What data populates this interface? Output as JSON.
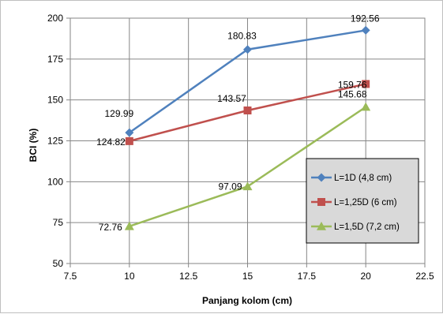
{
  "chart_data": {
    "type": "line",
    "title": "",
    "xlabel": "Panjang kolom (cm)",
    "ylabel": "BCI (%)",
    "xlim": [
      7.5,
      22.5
    ],
    "ylim": [
      50,
      200
    ],
    "xticks": [
      "7.5",
      "10",
      "12.5",
      "15",
      "17.5",
      "20",
      "22.5"
    ],
    "yticks": [
      "50",
      "75",
      "100",
      "125",
      "150",
      "175",
      "200"
    ],
    "grid": true,
    "legend_position": "right",
    "x": [
      10,
      15,
      20
    ],
    "series": [
      {
        "name": "L=1D (4,8 cm)",
        "values": [
          129.99,
          180.83,
          192.56
        ],
        "labels": [
          "129.99",
          "180.83",
          "192.56"
        ],
        "color": "#4f81bd",
        "marker": "diamond"
      },
      {
        "name": "L=1,25D (6 cm)",
        "values": [
          124.82,
          143.57,
          159.76
        ],
        "labels": [
          "124.82",
          "143.57",
          "159.76"
        ],
        "color": "#c0504d",
        "marker": "square"
      },
      {
        "name": "L=1,5D (7,2 cm)",
        "values": [
          72.76,
          97.09,
          145.68
        ],
        "labels": [
          "72.76",
          "97.09",
          "145.68"
        ],
        "color": "#9bbb59",
        "marker": "triangle"
      }
    ]
  }
}
